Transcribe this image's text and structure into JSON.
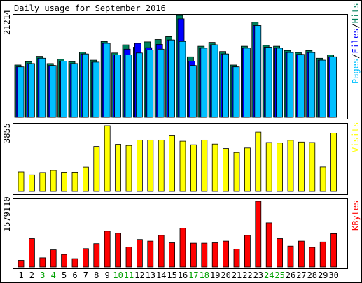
{
  "chart_data": [
    {
      "type": "bar",
      "title": "Daily usage for September 2016",
      "categories": [
        "1",
        "2",
        "3",
        "4",
        "5",
        "6",
        "7",
        "8",
        "9",
        "10",
        "11",
        "12",
        "13",
        "14",
        "15",
        "16",
        "17",
        "18",
        "19",
        "20",
        "21",
        "22",
        "23",
        "24",
        "25",
        "26",
        "27",
        "28",
        "29",
        "30"
      ],
      "weekend_days": [
        "3",
        "4",
        "10",
        "11",
        "17",
        "18",
        "24",
        "25"
      ],
      "y_tick_label": "21214",
      "ylim": [
        0,
        21214
      ],
      "legend": [
        "Pages",
        "/",
        "Files",
        "/",
        "Hits"
      ],
      "series": [
        {
          "name": "Hits",
          "color": "#00805c",
          "values": [
            10900,
            11600,
            12700,
            11200,
            12100,
            11600,
            13600,
            11900,
            15800,
            13400,
            15100,
            14600,
            15700,
            16200,
            16800,
            21214,
            12600,
            14800,
            15600,
            13700,
            10900,
            14800,
            19800,
            15000,
            14800,
            13900,
            13500,
            13900,
            12300,
            13000
          ]
        },
        {
          "name": "Files",
          "color": "#0000ff",
          "values": [
            10500,
            11200,
            12300,
            10800,
            11700,
            11200,
            13200,
            11500,
            15400,
            13000,
            14200,
            15400,
            14500,
            15200,
            16100,
            20500,
            11700,
            14400,
            15100,
            13200,
            10500,
            14400,
            19100,
            14600,
            14400,
            13500,
            13100,
            13500,
            11900,
            12600
          ]
        },
        {
          "name": "Pages",
          "color": "#00c0ff",
          "values": [
            10500,
            11200,
            12300,
            10800,
            11700,
            11200,
            13200,
            11500,
            15400,
            13000,
            13000,
            13400,
            14000,
            14200,
            16100,
            15800,
            10800,
            14400,
            15100,
            13200,
            10500,
            14400,
            19100,
            14600,
            14400,
            13500,
            13100,
            13500,
            11900,
            12600
          ]
        }
      ]
    },
    {
      "type": "bar",
      "categories": [
        "1",
        "2",
        "3",
        "4",
        "5",
        "6",
        "7",
        "8",
        "9",
        "10",
        "11",
        "12",
        "13",
        "14",
        "15",
        "16",
        "17",
        "18",
        "19",
        "20",
        "21",
        "22",
        "23",
        "24",
        "25",
        "26",
        "27",
        "28",
        "29",
        "30"
      ],
      "y_tick_label": "3855",
      "ylim": [
        0,
        3855
      ],
      "legend": [
        "Visits"
      ],
      "series": [
        {
          "name": "Visits",
          "color": "#ffff00",
          "values": [
            1150,
            970,
            1110,
            1230,
            1130,
            1130,
            1430,
            2640,
            3855,
            2770,
            2700,
            3020,
            3020,
            3020,
            3300,
            2950,
            2740,
            3020,
            2780,
            2520,
            2290,
            2550,
            3480,
            2870,
            2840,
            3000,
            2900,
            2870,
            1440,
            3420
          ]
        }
      ]
    },
    {
      "type": "bar",
      "categories": [
        "1",
        "2",
        "3",
        "4",
        "5",
        "6",
        "7",
        "8",
        "9",
        "10",
        "11",
        "12",
        "13",
        "14",
        "15",
        "16",
        "17",
        "18",
        "19",
        "20",
        "21",
        "22",
        "23",
        "24",
        "25",
        "26",
        "27",
        "28",
        "29",
        "30"
      ],
      "y_tick_label": "1579110",
      "ylim": [
        0,
        1579110
      ],
      "legend": [
        "KBytes"
      ],
      "series": [
        {
          "name": "KBytes",
          "color": "#ff0000",
          "values": [
            160000,
            680000,
            220000,
            410000,
            300000,
            200000,
            440000,
            560000,
            860000,
            810000,
            480000,
            660000,
            620000,
            760000,
            580000,
            930000,
            570000,
            570000,
            580000,
            620000,
            430000,
            760000,
            1579110,
            1060000,
            680000,
            500000,
            620000,
            470000,
            600000,
            800000
          ]
        }
      ]
    }
  ]
}
